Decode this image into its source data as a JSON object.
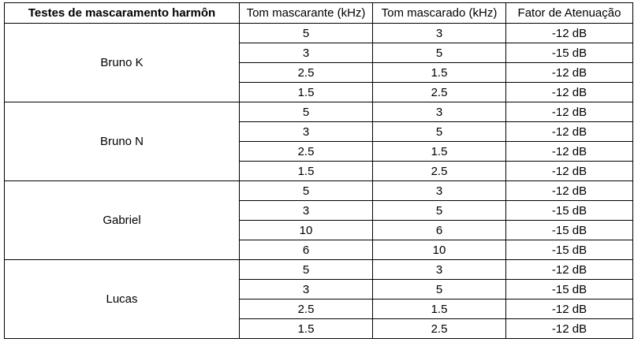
{
  "table": {
    "headers": [
      "Testes de mascaramento harmôn",
      "Tom mascarante (kHz)",
      "Tom mascarado (kHz)",
      "Fator de Atenuação"
    ],
    "groups": [
      {
        "subject": "Bruno K",
        "rows": [
          [
            "5",
            "3",
            "-12 dB"
          ],
          [
            "3",
            "5",
            "-15 dB"
          ],
          [
            "2.5",
            "1.5",
            "-12 dB"
          ],
          [
            "1.5",
            "2.5",
            "-12 dB"
          ]
        ]
      },
      {
        "subject": "Bruno N",
        "rows": [
          [
            "5",
            "3",
            "-12 dB"
          ],
          [
            "3",
            "5",
            "-12 dB"
          ],
          [
            "2.5",
            "1.5",
            "-12 dB"
          ],
          [
            "1.5",
            "2.5",
            "-12 dB"
          ]
        ]
      },
      {
        "subject": "Gabriel",
        "rows": [
          [
            "5",
            "3",
            "-12 dB"
          ],
          [
            "3",
            "5",
            "-15 dB"
          ],
          [
            "10",
            "6",
            "-15 dB"
          ],
          [
            "6",
            "10",
            "-15 dB"
          ]
        ]
      },
      {
        "subject": "Lucas",
        "rows": [
          [
            "5",
            "3",
            "-12 dB"
          ],
          [
            "3",
            "5",
            "-15 dB"
          ],
          [
            "2.5",
            "1.5",
            "-12 dB"
          ],
          [
            "1.5",
            "2.5",
            "-12 dB"
          ]
        ]
      }
    ]
  }
}
